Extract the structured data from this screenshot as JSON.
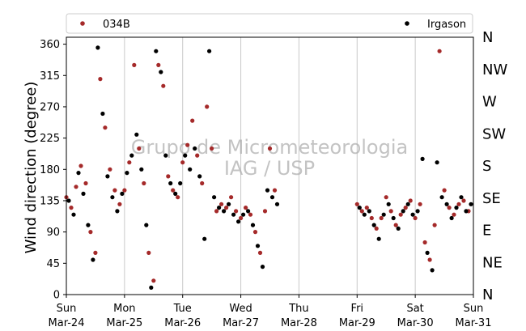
{
  "chart_data": {
    "type": "scatter",
    "title": "",
    "xlabel": "",
    "ylabel": "Wind direction (degree)",
    "ylim": [
      0,
      370
    ],
    "xlim": [
      "2024-03-24",
      "2024-03-31"
    ],
    "yticks": [
      0,
      45,
      90,
      135,
      180,
      225,
      270,
      315,
      360
    ],
    "xticks": [
      {
        "day": "Sun",
        "date": "Mar-24"
      },
      {
        "day": "Mon",
        "date": "Mar-25"
      },
      {
        "day": "Tue",
        "date": "Mar-26"
      },
      {
        "day": "Wed",
        "date": "Mar-27"
      },
      {
        "day": "Thu",
        "date": "Mar-28"
      },
      {
        "day": "Fri",
        "date": "Mar-29"
      },
      {
        "day": "Sat",
        "date": "Mar-30"
      },
      {
        "day": "Sun",
        "date": "Mar-31"
      }
    ],
    "direction_labels": [
      {
        "label": "N",
        "value": 0
      },
      {
        "label": "NE",
        "value": 45
      },
      {
        "label": "E",
        "value": 90
      },
      {
        "label": "SE",
        "value": 135
      },
      {
        "label": "S",
        "value": 180
      },
      {
        "label": "SW",
        "value": 225
      },
      {
        "label": "W",
        "value": 270
      },
      {
        "label": "NW",
        "value": 315
      },
      {
        "label": "N",
        "value": 360
      }
    ],
    "grid": "vertical",
    "legend": {
      "placement": "top",
      "columns": 2
    },
    "watermark": [
      "Grupo de Micrometeorologia",
      "IAG / USP"
    ],
    "series": [
      {
        "name": "034B",
        "color": "#a52a2a",
        "points": [
          [
            "2024-03-24T00:00",
            140
          ],
          [
            "2024-03-24T02:00",
            125
          ],
          [
            "2024-03-24T04:00",
            155
          ],
          [
            "2024-03-24T06:00",
            185
          ],
          [
            "2024-03-24T08:00",
            160
          ],
          [
            "2024-03-24T10:00",
            90
          ],
          [
            "2024-03-24T12:00",
            60
          ],
          [
            "2024-03-24T14:00",
            310
          ],
          [
            "2024-03-24T16:00",
            240
          ],
          [
            "2024-03-24T18:00",
            180
          ],
          [
            "2024-03-24T20:00",
            150
          ],
          [
            "2024-03-24T22:00",
            130
          ],
          [
            "2024-03-25T00:00",
            150
          ],
          [
            "2024-03-25T02:00",
            190
          ],
          [
            "2024-03-25T04:00",
            330
          ],
          [
            "2024-03-25T06:00",
            210
          ],
          [
            "2024-03-25T08:00",
            160
          ],
          [
            "2024-03-25T10:00",
            60
          ],
          [
            "2024-03-25T12:00",
            20
          ],
          [
            "2024-03-25T14:00",
            330
          ],
          [
            "2024-03-25T16:00",
            300
          ],
          [
            "2024-03-25T18:00",
            170
          ],
          [
            "2024-03-25T20:00",
            150
          ],
          [
            "2024-03-25T22:00",
            140
          ],
          [
            "2024-03-26T00:00",
            190
          ],
          [
            "2024-03-26T02:00",
            215
          ],
          [
            "2024-03-26T04:00",
            250
          ],
          [
            "2024-03-26T06:00",
            200
          ],
          [
            "2024-03-26T08:00",
            160
          ],
          [
            "2024-03-26T10:00",
            270
          ],
          [
            "2024-03-26T12:00",
            210
          ],
          [
            "2024-03-26T14:00",
            120
          ],
          [
            "2024-03-26T16:00",
            130
          ],
          [
            "2024-03-26T18:00",
            125
          ],
          [
            "2024-03-26T20:00",
            140
          ],
          [
            "2024-03-26T22:00",
            120
          ],
          [
            "2024-03-27T00:00",
            110
          ],
          [
            "2024-03-27T02:00",
            125
          ],
          [
            "2024-03-27T04:00",
            115
          ],
          [
            "2024-03-27T06:00",
            90
          ],
          [
            "2024-03-27T08:00",
            60
          ],
          [
            "2024-03-27T10:00",
            120
          ],
          [
            "2024-03-27T12:00",
            210
          ],
          [
            "2024-03-27T14:00",
            150
          ],
          [
            "2024-03-29T00:00",
            130
          ],
          [
            "2024-03-29T02:00",
            120
          ],
          [
            "2024-03-29T04:00",
            125
          ],
          [
            "2024-03-29T06:00",
            110
          ],
          [
            "2024-03-29T08:00",
            95
          ],
          [
            "2024-03-29T10:00",
            110
          ],
          [
            "2024-03-29T12:00",
            140
          ],
          [
            "2024-03-29T14:00",
            120
          ],
          [
            "2024-03-29T16:00",
            100
          ],
          [
            "2024-03-29T18:00",
            115
          ],
          [
            "2024-03-29T20:00",
            125
          ],
          [
            "2024-03-29T22:00",
            135
          ],
          [
            "2024-03-30T00:00",
            110
          ],
          [
            "2024-03-30T02:00",
            130
          ],
          [
            "2024-03-30T04:00",
            75
          ],
          [
            "2024-03-30T06:00",
            50
          ],
          [
            "2024-03-30T08:00",
            100
          ],
          [
            "2024-03-30T10:00",
            350
          ],
          [
            "2024-03-30T12:00",
            150
          ],
          [
            "2024-03-30T14:00",
            125
          ],
          [
            "2024-03-30T16:00",
            115
          ],
          [
            "2024-03-30T18:00",
            130
          ],
          [
            "2024-03-30T20:00",
            135
          ],
          [
            "2024-03-30T22:00",
            120
          ]
        ]
      },
      {
        "name": "Irgason",
        "color": "#000000",
        "points": [
          [
            "2024-03-24T01:00",
            135
          ],
          [
            "2024-03-24T03:00",
            115
          ],
          [
            "2024-03-24T05:00",
            175
          ],
          [
            "2024-03-24T07:00",
            145
          ],
          [
            "2024-03-24T09:00",
            100
          ],
          [
            "2024-03-24T11:00",
            50
          ],
          [
            "2024-03-24T13:00",
            355
          ],
          [
            "2024-03-24T15:00",
            260
          ],
          [
            "2024-03-24T17:00",
            170
          ],
          [
            "2024-03-24T19:00",
            140
          ],
          [
            "2024-03-24T21:00",
            120
          ],
          [
            "2024-03-24T23:00",
            145
          ],
          [
            "2024-03-25T01:00",
            175
          ],
          [
            "2024-03-25T03:00",
            200
          ],
          [
            "2024-03-25T05:00",
            230
          ],
          [
            "2024-03-25T07:00",
            180
          ],
          [
            "2024-03-25T09:00",
            100
          ],
          [
            "2024-03-25T11:00",
            10
          ],
          [
            "2024-03-25T13:00",
            350
          ],
          [
            "2024-03-25T15:00",
            320
          ],
          [
            "2024-03-25T17:00",
            200
          ],
          [
            "2024-03-25T19:00",
            160
          ],
          [
            "2024-03-25T21:00",
            145
          ],
          [
            "2024-03-25T23:00",
            160
          ],
          [
            "2024-03-26T01:00",
            200
          ],
          [
            "2024-03-26T03:00",
            180
          ],
          [
            "2024-03-26T05:00",
            210
          ],
          [
            "2024-03-26T07:00",
            170
          ],
          [
            "2024-03-26T09:00",
            80
          ],
          [
            "2024-03-26T11:00",
            350
          ],
          [
            "2024-03-26T13:00",
            140
          ],
          [
            "2024-03-26T15:00",
            125
          ],
          [
            "2024-03-26T17:00",
            120
          ],
          [
            "2024-03-26T19:00",
            130
          ],
          [
            "2024-03-26T21:00",
            115
          ],
          [
            "2024-03-26T23:00",
            105
          ],
          [
            "2024-03-27T01:00",
            115
          ],
          [
            "2024-03-27T03:00",
            120
          ],
          [
            "2024-03-27T05:00",
            100
          ],
          [
            "2024-03-27T07:00",
            70
          ],
          [
            "2024-03-27T09:00",
            40
          ],
          [
            "2024-03-27T11:00",
            150
          ],
          [
            "2024-03-27T13:00",
            140
          ],
          [
            "2024-03-27T15:00",
            130
          ],
          [
            "2024-03-29T01:00",
            125
          ],
          [
            "2024-03-29T03:00",
            115
          ],
          [
            "2024-03-29T05:00",
            120
          ],
          [
            "2024-03-29T07:00",
            100
          ],
          [
            "2024-03-29T09:00",
            80
          ],
          [
            "2024-03-29T11:00",
            115
          ],
          [
            "2024-03-29T13:00",
            130
          ],
          [
            "2024-03-29T15:00",
            110
          ],
          [
            "2024-03-29T17:00",
            95
          ],
          [
            "2024-03-29T19:00",
            120
          ],
          [
            "2024-03-29T21:00",
            130
          ],
          [
            "2024-03-29T23:00",
            115
          ],
          [
            "2024-03-30T01:00",
            120
          ],
          [
            "2024-03-30T03:00",
            195
          ],
          [
            "2024-03-30T05:00",
            60
          ],
          [
            "2024-03-30T07:00",
            35
          ],
          [
            "2024-03-30T09:00",
            190
          ],
          [
            "2024-03-30T11:00",
            140
          ],
          [
            "2024-03-30T13:00",
            130
          ],
          [
            "2024-03-30T15:00",
            110
          ],
          [
            "2024-03-30T17:00",
            125
          ],
          [
            "2024-03-30T19:00",
            140
          ],
          [
            "2024-03-30T21:00",
            120
          ],
          [
            "2024-03-30T23:00",
            130
          ]
        ]
      }
    ]
  }
}
